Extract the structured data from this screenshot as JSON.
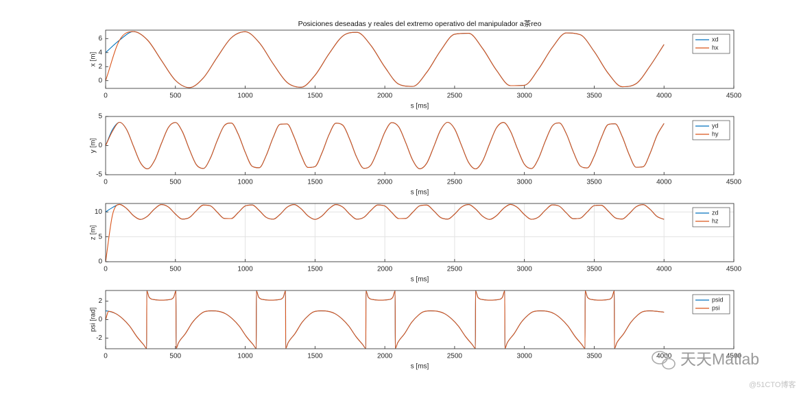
{
  "chart_data": [
    {
      "type": "line",
      "title": "Posiciones deseadas y reales del extremo operativo del manipulador a茶reo",
      "xlabel": "s [ms]",
      "ylabel": "x [m]",
      "x": [
        0,
        100,
        200,
        300,
        400,
        500,
        600,
        700,
        800,
        900,
        1000,
        1100,
        1200,
        1300,
        1400,
        1500,
        1600,
        1700,
        1800,
        1900,
        2000,
        2100,
        2200,
        2300,
        2400,
        2500,
        2600,
        2700,
        2800,
        2900,
        3000,
        3100,
        3200,
        3300,
        3400,
        3500,
        3600,
        3700,
        3800,
        3900,
        4000
      ],
      "series": [
        {
          "name": "xd",
          "color": "#0072bd",
          "values": [
            4.0,
            5.78,
            7.0,
            5.79,
            2.89,
            0.05,
            -0.99,
            0.39,
            3.35,
            6.1,
            6.97,
            5.43,
            2.41,
            -0.25,
            -0.94,
            0.77,
            3.82,
            6.38,
            6.89,
            5.03,
            1.94,
            -0.5,
            -0.82,
            1.18,
            4.29,
            6.62,
            6.75,
            4.6,
            1.48,
            -0.71,
            -0.65,
            1.63,
            4.73,
            6.8,
            6.55,
            4.15,
            1.05,
            -0.86,
            -0.43,
            2.09,
            5.16
          ]
        },
        {
          "name": "hx",
          "color": "#d95319",
          "values": [
            0,
            5.78,
            7.0,
            5.79,
            2.89,
            0.05,
            -0.99,
            0.39,
            3.35,
            6.1,
            6.97,
            5.43,
            2.41,
            -0.25,
            -0.94,
            0.77,
            3.82,
            6.38,
            6.89,
            5.03,
            1.94,
            -0.5,
            -0.82,
            1.18,
            4.29,
            6.62,
            6.75,
            4.6,
            1.48,
            -0.71,
            -0.65,
            1.63,
            4.73,
            6.8,
            6.55,
            4.15,
            1.05,
            -0.86,
            -0.43,
            2.09,
            5.16
          ]
        }
      ],
      "xlim": [
        0,
        4500
      ],
      "xticks": [
        0,
        500,
        1000,
        1500,
        2000,
        2500,
        3000,
        3500,
        4000,
        4500
      ],
      "ylim": [
        -1.1,
        7.2
      ],
      "yticks": [
        0,
        2,
        4,
        6
      ],
      "grid": false,
      "legend": "northeast"
    },
    {
      "type": "line",
      "xlabel": "s [ms]",
      "ylabel": "y [m]",
      "x": [
        0,
        50,
        100,
        150,
        200,
        250,
        300,
        350,
        400,
        450,
        500,
        550,
        600,
        650,
        700,
        750,
        800,
        850,
        900,
        950,
        1000,
        1050,
        1100,
        1150,
        1200,
        1250,
        1300,
        1350,
        1400,
        1450,
        1500,
        1550,
        1600,
        1650,
        1700,
        1750,
        1800,
        1850,
        1900,
        1950,
        2000,
        2050,
        2100,
        2150,
        2200,
        2250,
        2300,
        2350,
        2400,
        2450,
        2500,
        2550,
        2600,
        2650,
        2700,
        2750,
        2800,
        2850,
        2900,
        2950,
        3000,
        3050,
        3100,
        3150,
        3200,
        3250,
        3300,
        3350,
        3400,
        3450,
        3500,
        3550,
        3600,
        3650,
        3700,
        3750,
        3800,
        3850,
        3900,
        3950,
        4000
      ],
      "series": [
        {
          "name": "yd",
          "color": "#0072bd",
          "values": [
            0,
            2.78,
            4.0,
            2.78,
            -0.13,
            -2.96,
            -3.99,
            -2.59,
            0.38,
            3.13,
            3.97,
            2.39,
            -0.64,
            -3.28,
            -3.93,
            -2.18,
            0.89,
            3.42,
            3.87,
            1.96,
            -1.14,
            -3.55,
            -3.8,
            -1.73,
            1.39,
            3.66,
            3.71,
            1.49,
            -1.63,
            -3.76,
            -3.6,
            -1.25,
            1.86,
            3.84,
            3.48,
            1.0,
            -2.08,
            -3.9,
            -3.35,
            -0.75,
            2.3,
            3.95,
            3.2,
            0.49,
            -2.51,
            -3.98,
            -3.04,
            -0.24,
            2.7,
            4.0,
            2.86,
            -0.02,
            -2.89,
            -4.0,
            -2.68,
            0.28,
            3.06,
            3.98,
            2.47,
            -0.54,
            -3.22,
            -3.95,
            -2.27,
            0.79,
            3.37,
            3.89,
            2.05,
            -1.04,
            -3.5,
            -3.83,
            -1.82,
            1.29,
            3.62,
            3.74,
            1.59,
            -1.53,
            -3.72,
            -3.64,
            -1.35,
            1.77,
            3.81
          ]
        },
        {
          "name": "hy",
          "color": "#d95319",
          "values": [
            0,
            2.5,
            4.0,
            2.78,
            -0.13,
            -2.96,
            -3.99,
            -2.59,
            0.38,
            3.13,
            3.97,
            2.39,
            -0.64,
            -3.28,
            -3.93,
            -2.18,
            0.89,
            3.42,
            3.87,
            1.96,
            -1.14,
            -3.55,
            -3.8,
            -1.73,
            1.39,
            3.66,
            3.71,
            1.49,
            -1.63,
            -3.76,
            -3.6,
            -1.25,
            1.86,
            3.84,
            3.48,
            1.0,
            -2.08,
            -3.9,
            -3.35,
            -0.75,
            2.3,
            3.95,
            3.2,
            0.49,
            -2.51,
            -3.98,
            -3.04,
            -0.24,
            2.7,
            4.0,
            2.86,
            -0.02,
            -2.89,
            -4.0,
            -2.68,
            0.28,
            3.06,
            3.98,
            2.47,
            -0.54,
            -3.22,
            -3.95,
            -2.27,
            0.79,
            3.37,
            3.89,
            2.05,
            -1.04,
            -3.5,
            -3.83,
            -1.82,
            1.29,
            3.62,
            3.74,
            1.59,
            -1.53,
            -3.72,
            -3.64,
            -1.35,
            1.77,
            3.81
          ]
        }
      ],
      "xlim": [
        0,
        4500
      ],
      "xticks": [
        0,
        500,
        1000,
        1500,
        2000,
        2500,
        3000,
        3500,
        4000,
        4500
      ],
      "ylim": [
        -5,
        5
      ],
      "yticks": [
        -5,
        0,
        5
      ],
      "grid": false,
      "legend": "northeast"
    },
    {
      "type": "line",
      "xlabel": "s [ms]",
      "ylabel": "z [m]",
      "x": [
        0,
        50,
        100,
        150,
        200,
        250,
        300,
        350,
        400,
        450,
        500,
        550,
        600,
        650,
        700,
        750,
        800,
        850,
        900,
        950,
        1000,
        1050,
        1100,
        1150,
        1200,
        1250,
        1300,
        1350,
        1400,
        1450,
        1500,
        1550,
        1600,
        1650,
        1700,
        1750,
        1800,
        1850,
        1900,
        1950,
        2000,
        2050,
        2100,
        2150,
        2200,
        2250,
        2300,
        2350,
        2400,
        2450,
        2500,
        2550,
        2600,
        2650,
        2700,
        2750,
        2800,
        2850,
        2900,
        2950,
        3000,
        3050,
        3100,
        3150,
        3200,
        3250,
        3300,
        3350,
        3400,
        3450,
        3500,
        3550,
        3600,
        3650,
        3700,
        3750,
        3800,
        3850,
        3900,
        3950,
        4000
      ],
      "series": [
        {
          "name": "zd",
          "color": "#0072bd",
          "values": [
            10.0,
            10.9,
            11.5,
            10.7,
            9.25,
            8.5,
            9.15,
            10.59,
            11.48,
            10.99,
            9.58,
            8.56,
            8.88,
            10.24,
            11.38,
            11.23,
            9.94,
            8.7,
            8.67,
            9.88,
            11.2,
            11.4,
            10.3,
            8.92,
            8.54,
            9.52,
            10.95,
            11.49,
            10.64,
            9.2,
            8.5,
            9.2,
            10.64,
            11.49,
            10.95,
            9.52,
            8.54,
            8.92,
            10.3,
            11.4,
            11.2,
            9.88,
            8.67,
            8.7,
            9.94,
            11.23,
            11.38,
            10.24,
            8.88,
            8.56,
            9.58,
            10.99,
            11.48,
            10.59,
            9.15,
            8.5,
            9.25,
            10.7,
            11.5,
            10.9,
            9.46,
            8.53,
            8.96,
            10.36,
            11.42,
            11.16,
            9.81,
            8.64,
            8.74,
            10.0,
            11.27,
            11.35,
            10.18,
            8.83,
            8.58,
            9.65,
            11.04,
            11.47,
            10.53,
            9.09,
            8.51
          ]
        },
        {
          "name": "hz",
          "color": "#d95319",
          "values": [
            0,
            9.5,
            11.5,
            10.7,
            9.25,
            8.5,
            9.15,
            10.59,
            11.48,
            10.99,
            9.58,
            8.56,
            8.88,
            10.24,
            11.38,
            11.23,
            9.94,
            8.7,
            8.67,
            9.88,
            11.2,
            11.4,
            10.3,
            8.92,
            8.54,
            9.52,
            10.95,
            11.49,
            10.64,
            9.2,
            8.5,
            9.2,
            10.64,
            11.49,
            10.95,
            9.52,
            8.54,
            8.92,
            10.3,
            11.4,
            11.2,
            9.88,
            8.67,
            8.7,
            9.94,
            11.23,
            11.38,
            10.24,
            8.88,
            8.56,
            9.58,
            10.99,
            11.48,
            10.59,
            9.15,
            8.5,
            9.25,
            10.7,
            11.5,
            10.9,
            9.46,
            8.53,
            8.96,
            10.36,
            11.42,
            11.16,
            9.81,
            8.64,
            8.74,
            10.0,
            11.27,
            11.35,
            10.18,
            8.83,
            8.58,
            9.65,
            11.04,
            11.47,
            10.53,
            9.09,
            8.51
          ]
        }
      ],
      "xlim": [
        0,
        4500
      ],
      "xticks": [
        0,
        500,
        1000,
        1500,
        2000,
        2500,
        3000,
        3500,
        4000,
        4500
      ],
      "ylim": [
        0,
        11.7
      ],
      "yticks": [
        0,
        5,
        10
      ],
      "grid": true,
      "legend": "northeast"
    },
    {
      "type": "line",
      "xlabel": "s [ms]",
      "ylabel": "psi [rad]",
      "x": [
        0,
        22,
        72,
        122,
        172,
        222,
        272,
        294,
        295,
        312,
        352,
        400,
        452,
        487,
        504,
        505,
        522,
        572,
        622,
        672,
        707,
        757,
        807,
        857,
        907,
        957,
        1007,
        1057,
        1079,
        1080,
        1097,
        1137,
        1185,
        1237,
        1272,
        1289,
        1290,
        1307,
        1357,
        1407,
        1457,
        1492,
        1542,
        1592,
        1642,
        1692,
        1742,
        1792,
        1842,
        1864,
        1865,
        1882,
        1922,
        1970,
        2022,
        2057,
        2074,
        2075,
        2092,
        2142,
        2192,
        2242,
        2277,
        2327,
        2377,
        2427,
        2477,
        2527,
        2577,
        2627,
        2649,
        2650,
        2667,
        2707,
        2755,
        2807,
        2842,
        2859,
        2860,
        2877,
        2927,
        2977,
        3027,
        3062,
        3112,
        3162,
        3212,
        3262,
        3312,
        3362,
        3412,
        3434,
        3435,
        3452,
        3492,
        3540,
        3592,
        3627,
        3644,
        3645,
        3662,
        3712,
        3762,
        3812,
        3847,
        3897,
        3947,
        4000
      ],
      "series": [
        {
          "name": "psid",
          "color": "#0072bd",
          "values": [
            0.95,
            0.9,
            0.65,
            0.1,
            -0.7,
            -1.8,
            -2.7,
            -3.1,
            3.1,
            2.4,
            2.15,
            2.1,
            2.15,
            2.4,
            3.1,
            -3.1,
            -2.5,
            -1.5,
            -0.3,
            0.5,
            0.85,
            0.95,
            0.9,
            0.65,
            0.1,
            -0.7,
            -1.8,
            -2.7,
            -3.1,
            3.1,
            2.4,
            2.15,
            2.1,
            2.15,
            2.4,
            3.1,
            -3.1,
            -2.5,
            -1.5,
            -0.3,
            0.5,
            0.85,
            0.95,
            0.9,
            0.65,
            0.1,
            -0.7,
            -1.8,
            -2.7,
            -3.1,
            3.1,
            2.4,
            2.15,
            2.1,
            2.15,
            2.4,
            3.1,
            -3.1,
            -2.5,
            -1.5,
            -0.3,
            0.5,
            0.85,
            0.95,
            0.9,
            0.65,
            0.1,
            -0.7,
            -1.8,
            -2.7,
            -3.1,
            3.1,
            2.4,
            2.15,
            2.1,
            2.15,
            2.4,
            3.1,
            -3.1,
            -2.5,
            -1.5,
            -0.3,
            0.5,
            0.85,
            0.95,
            0.9,
            0.65,
            0.1,
            -0.7,
            -1.8,
            -2.7,
            -3.1,
            3.1,
            2.4,
            2.15,
            2.1,
            2.15,
            2.4,
            3.1,
            -3.1,
            -2.5,
            -1.5,
            -0.3,
            0.5,
            0.85,
            0.95,
            0.9,
            0.8
          ]
        },
        {
          "name": "psi",
          "color": "#d95319",
          "values": [
            0,
            0.9,
            0.65,
            0.1,
            -0.7,
            -1.8,
            -2.7,
            -3.1,
            3.1,
            2.4,
            2.15,
            2.1,
            2.15,
            2.4,
            3.1,
            -3.1,
            -2.5,
            -1.5,
            -0.3,
            0.5,
            0.85,
            0.95,
            0.9,
            0.65,
            0.1,
            -0.7,
            -1.8,
            -2.7,
            -3.1,
            3.1,
            2.4,
            2.15,
            2.1,
            2.15,
            2.4,
            3.1,
            -3.1,
            -2.5,
            -1.5,
            -0.3,
            0.5,
            0.85,
            0.95,
            0.9,
            0.65,
            0.1,
            -0.7,
            -1.8,
            -2.7,
            -3.1,
            3.1,
            2.4,
            2.15,
            2.1,
            2.15,
            2.4,
            3.1,
            -3.1,
            -2.5,
            -1.5,
            -0.3,
            0.5,
            0.85,
            0.95,
            0.9,
            0.65,
            0.1,
            -0.7,
            -1.8,
            -2.7,
            -3.1,
            3.1,
            2.4,
            2.15,
            2.1,
            2.15,
            2.4,
            3.1,
            -3.1,
            -2.5,
            -1.5,
            -0.3,
            0.5,
            0.85,
            0.95,
            0.9,
            0.65,
            0.1,
            -0.7,
            -1.8,
            -2.7,
            -3.1,
            3.1,
            2.4,
            2.15,
            2.1,
            2.15,
            2.4,
            3.1,
            -3.1,
            -2.5,
            -1.5,
            -0.3,
            0.5,
            0.85,
            0.95,
            0.9,
            0.8
          ]
        }
      ],
      "xlim": [
        0,
        4500
      ],
      "xticks": [
        0,
        500,
        1000,
        1500,
        2000,
        2500,
        3000,
        3500,
        4000,
        4500
      ],
      "ylim": [
        -3.14,
        3.14
      ],
      "yticks": [
        -2,
        0,
        2
      ],
      "grid": false,
      "legend": "northeast"
    }
  ],
  "watermark": {
    "brand": "天天Matlab",
    "source": "@51CTO博客"
  }
}
